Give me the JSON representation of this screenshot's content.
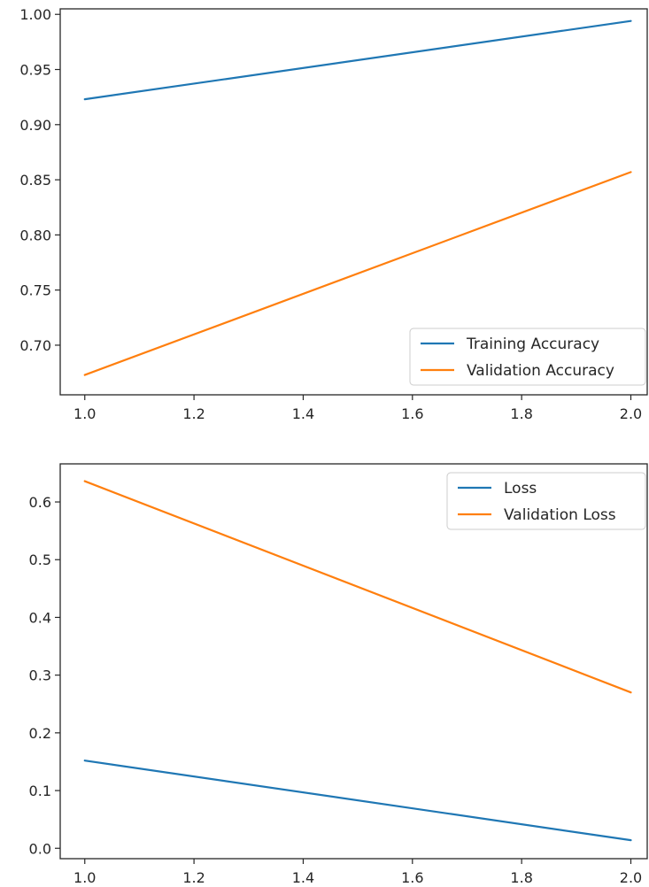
{
  "chart_data": [
    {
      "type": "line",
      "title": "",
      "xlabel": "",
      "ylabel": "",
      "xlim": [
        0.955,
        2.03
      ],
      "ylim": [
        0.655,
        1.005
      ],
      "xticks": [
        1.0,
        1.2,
        1.4,
        1.6,
        1.8,
        2.0
      ],
      "xtick_labels": [
        "1.0",
        "1.2",
        "1.4",
        "1.6",
        "1.8",
        "2.0"
      ],
      "yticks": [
        0.7,
        0.75,
        0.8,
        0.85,
        0.9,
        0.95,
        1.0
      ],
      "ytick_labels": [
        "0.70",
        "0.75",
        "0.80",
        "0.85",
        "0.90",
        "0.95",
        "1.00"
      ],
      "grid": false,
      "legend_position": "lower-right",
      "series": [
        {
          "name": "Training Accuracy",
          "color": "#1f77b4",
          "x": [
            1.0,
            2.0
          ],
          "y": [
            0.923,
            0.994
          ]
        },
        {
          "name": "Validation Accuracy",
          "color": "#ff7f0e",
          "x": [
            1.0,
            2.0
          ],
          "y": [
            0.673,
            0.857
          ]
        }
      ]
    },
    {
      "type": "line",
      "title": "",
      "xlabel": "",
      "ylabel": "",
      "xlim": [
        0.955,
        2.03
      ],
      "ylim": [
        -0.018,
        0.666
      ],
      "xticks": [
        1.0,
        1.2,
        1.4,
        1.6,
        1.8,
        2.0
      ],
      "xtick_labels": [
        "1.0",
        "1.2",
        "1.4",
        "1.6",
        "1.8",
        "2.0"
      ],
      "yticks": [
        0.0,
        0.1,
        0.2,
        0.3,
        0.4,
        0.5,
        0.6
      ],
      "ytick_labels": [
        "0.0",
        "0.1",
        "0.2",
        "0.3",
        "0.4",
        "0.5",
        "0.6"
      ],
      "grid": false,
      "legend_position": "upper-right",
      "series": [
        {
          "name": "Loss",
          "color": "#1f77b4",
          "x": [
            1.0,
            2.0
          ],
          "y": [
            0.152,
            0.014
          ]
        },
        {
          "name": "Validation Loss",
          "color": "#ff7f0e",
          "x": [
            1.0,
            2.0
          ],
          "y": [
            0.636,
            0.27
          ]
        }
      ]
    }
  ]
}
